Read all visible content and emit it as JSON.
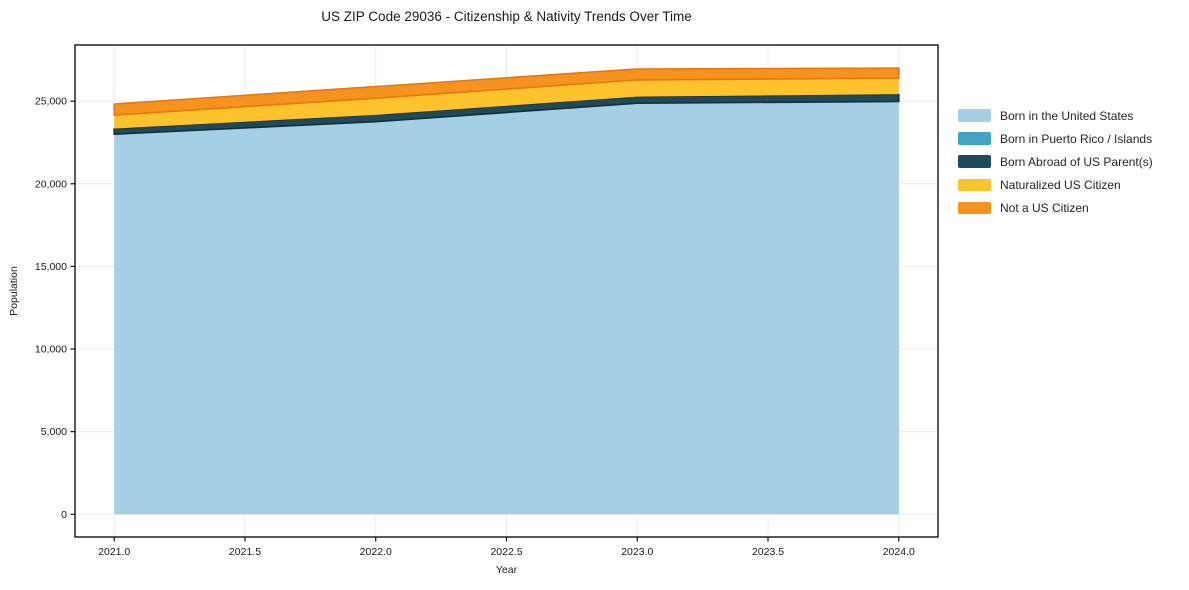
{
  "title": "US ZIP Code 29036 - Citizenship & Nativity Trends Over Time",
  "chart_data": {
    "type": "area",
    "stacked": true,
    "title": "US ZIP Code 29036 - Citizenship & Nativity Trends Over Time",
    "xlabel": "Year",
    "ylabel": "Population",
    "x": [
      2021,
      2022,
      2023,
      2024
    ],
    "series": [
      {
        "name": "Born in the United States",
        "color": "#a5cfe4",
        "edge": "#8cbcd6",
        "edge_width": 0,
        "values": [
          23000,
          23760,
          24880,
          24980
        ]
      },
      {
        "name": "Born in Puerto Rico / Islands",
        "color": "#3fa5c3",
        "edge": "#2f84a0",
        "edge_width": 0,
        "values": [
          0,
          0,
          0,
          0
        ]
      },
      {
        "name": "Born Abroad of US Parent(s)",
        "color": "#1f4a5c",
        "edge": "#142f3b",
        "edge_width": 1.6,
        "values": [
          340,
          410,
          400,
          440
        ]
      },
      {
        "name": "Naturalized US Citizen",
        "color": "#fcc32d",
        "edge": "#eaae1c",
        "edge_width": 0,
        "values": [
          820,
          1010,
          1010,
          970
        ]
      },
      {
        "name": "Not a US Citizen",
        "color": "#f6921e",
        "edge": "#e0790f",
        "edge_width": 1.6,
        "values": [
          670,
          700,
          660,
          610
        ]
      }
    ],
    "xlim": [
      2020.85,
      2024.15
    ],
    "ylim": [
      -1375,
      28400
    ],
    "xticks": {
      "values": [
        2021.0,
        2021.5,
        2022.0,
        2022.5,
        2023.0,
        2023.5,
        2024.0
      ],
      "labels": [
        "2021.0",
        "2021.5",
        "2022.0",
        "2022.5",
        "2023.0",
        "2023.5",
        "2024.0"
      ]
    },
    "yticks": {
      "values": [
        0,
        5000,
        10000,
        15000,
        20000,
        25000
      ],
      "labels": [
        "0",
        "5,000",
        "10,000",
        "15,000",
        "20,000",
        "25,000"
      ]
    },
    "grid": true,
    "grid_color": "#ebebeb",
    "spine_color": "#000000",
    "legend_position": "right"
  }
}
